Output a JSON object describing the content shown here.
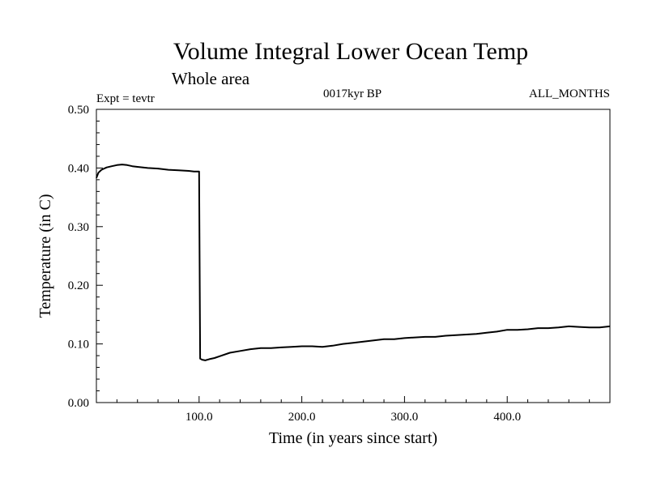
{
  "chart_data": {
    "type": "line",
    "title": "Volume Integral Lower Ocean Temp",
    "subtitle": "Whole area",
    "annotations": {
      "experiment": "Expt = tevtr",
      "period": "0017kyr BP",
      "months": "ALL_MONTHS"
    },
    "xlabel": "Time (in years since start)",
    "ylabel": "Temperature (in C)",
    "xlim": [
      0,
      500
    ],
    "ylim": [
      0,
      0.5
    ],
    "x_ticks": [
      100,
      200,
      300,
      400
    ],
    "x_tick_labels": [
      "100.0",
      "200.0",
      "300.0",
      "400.0"
    ],
    "y_ticks": [
      0,
      0.1,
      0.2,
      0.3,
      0.4,
      0.5
    ],
    "y_tick_labels": [
      "0.00",
      "0.10",
      "0.20",
      "0.30",
      "0.40",
      "0.50"
    ],
    "grid": false,
    "series": [
      {
        "color": "#000000",
        "x": [
          0,
          2,
          5,
          10,
          15,
          20,
          25,
          30,
          35,
          40,
          50,
          60,
          70,
          80,
          90,
          95,
          99,
          100,
          101,
          103,
          106,
          110,
          115,
          120,
          130,
          140,
          150,
          160,
          170,
          180,
          190,
          200,
          210,
          220,
          230,
          240,
          250,
          260,
          270,
          280,
          290,
          300,
          310,
          320,
          330,
          340,
          350,
          360,
          370,
          380,
          390,
          400,
          410,
          420,
          430,
          440,
          450,
          460,
          470,
          480,
          490,
          500
        ],
        "y": [
          0.383,
          0.392,
          0.397,
          0.401,
          0.403,
          0.405,
          0.406,
          0.405,
          0.403,
          0.402,
          0.4,
          0.399,
          0.397,
          0.396,
          0.395,
          0.394,
          0.394,
          0.394,
          0.075,
          0.073,
          0.072,
          0.074,
          0.076,
          0.079,
          0.085,
          0.088,
          0.091,
          0.093,
          0.093,
          0.094,
          0.095,
          0.096,
          0.096,
          0.095,
          0.097,
          0.1,
          0.102,
          0.104,
          0.106,
          0.108,
          0.108,
          0.11,
          0.111,
          0.112,
          0.112,
          0.114,
          0.115,
          0.116,
          0.117,
          0.119,
          0.121,
          0.124,
          0.124,
          0.125,
          0.127,
          0.127,
          0.128,
          0.13,
          0.129,
          0.128,
          0.128,
          0.13
        ]
      }
    ]
  }
}
